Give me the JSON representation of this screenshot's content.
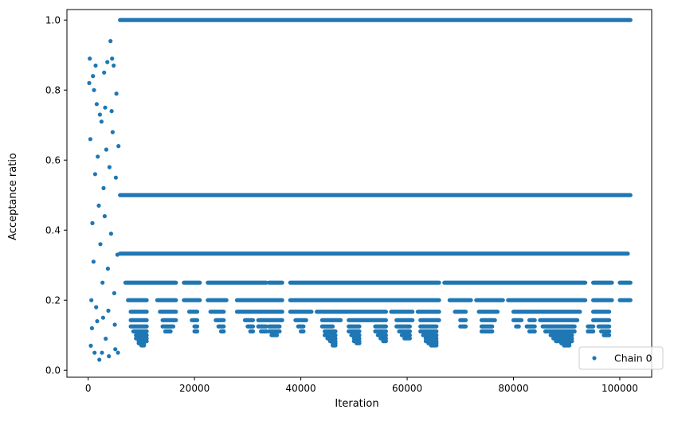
{
  "chart_data": {
    "type": "scatter",
    "xlabel": "Iteration",
    "ylabel": "Acceptance ratio",
    "xlim": [
      -4000,
      106000
    ],
    "ylim": [
      -0.02,
      1.03
    ],
    "xticks": [
      0,
      20000,
      40000,
      60000,
      80000,
      100000
    ],
    "xtick_labels": [
      "0",
      "20000",
      "40000",
      "60000",
      "80000",
      "100000"
    ],
    "yticks": [
      0.0,
      0.2,
      0.4,
      0.6,
      0.8,
      1.0
    ],
    "ytick_labels": [
      "0.0",
      "0.2",
      "0.4",
      "0.6",
      "0.8",
      "1.0"
    ],
    "grid": false,
    "legend_position": "lower-right",
    "marker_color": "#1f77b4",
    "series": [
      {
        "name": "Chain 0",
        "points": [
          [
            200,
            0.82
          ],
          [
            300,
            0.89
          ],
          [
            500,
            0.07
          ],
          [
            700,
            0.12
          ],
          [
            900,
            0.84
          ],
          [
            1200,
            0.05
          ],
          [
            1400,
            0.87
          ],
          [
            1600,
            0.76
          ],
          [
            2100,
            0.03
          ],
          [
            2600,
            0.05
          ],
          [
            3000,
            0.85
          ],
          [
            3300,
            0.09
          ],
          [
            3600,
            0.88
          ],
          [
            3900,
            0.04
          ],
          [
            4200,
            0.94
          ],
          [
            4500,
            0.89
          ],
          [
            4800,
            0.87
          ],
          [
            5100,
            0.06
          ],
          [
            5300,
            0.79
          ],
          [
            5600,
            0.05
          ],
          [
            400,
            0.66
          ],
          [
            800,
            0.42
          ],
          [
            1000,
            0.31
          ],
          [
            1300,
            0.56
          ],
          [
            1500,
            0.18
          ],
          [
            1800,
            0.61
          ],
          [
            2000,
            0.47
          ],
          [
            2300,
            0.36
          ],
          [
            2500,
            0.71
          ],
          [
            2700,
            0.25
          ],
          [
            2900,
            0.52
          ],
          [
            3100,
            0.44
          ],
          [
            3400,
            0.63
          ],
          [
            3700,
            0.29
          ],
          [
            4000,
            0.58
          ],
          [
            4300,
            0.39
          ],
          [
            4600,
            0.68
          ],
          [
            4900,
            0.22
          ],
          [
            5200,
            0.55
          ],
          [
            5500,
            0.33
          ],
          [
            600,
            0.2
          ],
          [
            1100,
            0.8
          ],
          [
            1700,
            0.14
          ],
          [
            2200,
            0.73
          ],
          [
            2800,
            0.15
          ],
          [
            3200,
            0.75
          ],
          [
            3800,
            0.17
          ],
          [
            4400,
            0.74
          ],
          [
            5000,
            0.13
          ],
          [
            5700,
            0.64
          ]
        ],
        "bands": [
          {
            "y": 1.0,
            "segments": [
              [
                6000,
                102000
              ]
            ]
          },
          {
            "y": 0.5,
            "segments": [
              [
                6000,
                102000
              ]
            ]
          },
          {
            "y": 0.333,
            "segments": [
              [
                6000,
                101500
              ]
            ]
          },
          {
            "y": 0.25,
            "segments": [
              [
                7000,
                16500
              ],
              [
                18000,
                21000
              ],
              [
                22500,
                33500
              ],
              [
                34000,
                36500
              ],
              [
                38000,
                66000
              ],
              [
                67000,
                93500
              ],
              [
                95000,
                98500
              ],
              [
                100000,
                102000
              ]
            ]
          },
          {
            "y": 0.2,
            "segments": [
              [
                7500,
                11000
              ],
              [
                13000,
                16500
              ],
              [
                18000,
                21000
              ],
              [
                22500,
                26000
              ],
              [
                28000,
                36500
              ],
              [
                38000,
                66000
              ],
              [
                68000,
                72000
              ],
              [
                73000,
                78000
              ],
              [
                79000,
                93500
              ],
              [
                95000,
                98500
              ],
              [
                100000,
                102000
              ]
            ]
          },
          {
            "y": 0.167,
            "segments": [
              [
                8000,
                11000
              ],
              [
                13500,
                16500
              ],
              [
                19000,
                20500
              ],
              [
                23000,
                25500
              ],
              [
                28000,
                36500
              ],
              [
                38000,
                42000
              ],
              [
                43000,
                56000
              ],
              [
                57000,
                61000
              ],
              [
                62000,
                66000
              ],
              [
                69000,
                71000
              ],
              [
                73500,
                77000
              ],
              [
                80000,
                92500
              ],
              [
                95000,
                98000
              ]
            ]
          },
          {
            "y": 0.143,
            "segments": [
              [
                8000,
                11000
              ],
              [
                14000,
                16500
              ],
              [
                19500,
                20500
              ],
              [
                24000,
                25500
              ],
              [
                29500,
                31000
              ],
              [
                32000,
                36500
              ],
              [
                39000,
                41000
              ],
              [
                44000,
                47500
              ],
              [
                49000,
                56000
              ],
              [
                58000,
                61000
              ],
              [
                62500,
                66000
              ],
              [
                70000,
                71000
              ],
              [
                74000,
                76500
              ],
              [
                80000,
                81500
              ],
              [
                83000,
                84000
              ],
              [
                85000,
                92000
              ],
              [
                95000,
                98000
              ]
            ]
          },
          {
            "y": 0.125,
            "segments": [
              [
                8000,
                11000
              ],
              [
                14000,
                16000
              ],
              [
                20000,
                20500
              ],
              [
                24500,
                25500
              ],
              [
                30000,
                31000
              ],
              [
                32000,
                33500
              ],
              [
                34000,
                36000
              ],
              [
                39500,
                40500
              ],
              [
                44000,
                46000
              ],
              [
                49000,
                51000
              ],
              [
                54000,
                56000
              ],
              [
                58000,
                60500
              ],
              [
                62500,
                65500
              ],
              [
                70000,
                71000
              ],
              [
                74000,
                76000
              ],
              [
                80500,
                81000
              ],
              [
                82500,
                84000
              ],
              [
                85500,
                91500
              ],
              [
                94000,
                95000
              ],
              [
                96000,
                98000
              ]
            ]
          },
          {
            "y": 0.111,
            "segments": [
              [
                8500,
                11000
              ],
              [
                14500,
                15500
              ],
              [
                20000,
                20500
              ],
              [
                25000,
                25500
              ],
              [
                30500,
                31000
              ],
              [
                32500,
                33500
              ],
              [
                34000,
                36000
              ],
              [
                40000,
                40500
              ],
              [
                44500,
                46500
              ],
              [
                49000,
                51000
              ],
              [
                54000,
                56000
              ],
              [
                58500,
                60500
              ],
              [
                62500,
                65500
              ],
              [
                74000,
                76000
              ],
              [
                83000,
                84000
              ],
              [
                86000,
                91500
              ],
              [
                94000,
                95000
              ],
              [
                96500,
                98000
              ]
            ]
          },
          {
            "y": 0.1,
            "segments": [
              [
                9000,
                11000
              ],
              [
                34500,
                35500
              ],
              [
                44500,
                46500
              ],
              [
                49500,
                51000
              ],
              [
                54500,
                56000
              ],
              [
                59000,
                60500
              ],
              [
                63000,
                65500
              ],
              [
                87000,
                91000
              ],
              [
                97000,
                98000
              ]
            ]
          },
          {
            "y": 0.091,
            "segments": [
              [
                9000,
                11000
              ],
              [
                45000,
                46500
              ],
              [
                50000,
                51000
              ],
              [
                55000,
                56000
              ],
              [
                59500,
                60500
              ],
              [
                63500,
                65500
              ],
              [
                87500,
                91000
              ]
            ]
          },
          {
            "y": 0.083,
            "segments": [
              [
                9500,
                11000
              ],
              [
                45500,
                46500
              ],
              [
                50000,
                51000
              ],
              [
                55500,
                56000
              ],
              [
                63500,
                65500
              ],
              [
                88000,
                91000
              ]
            ]
          },
          {
            "y": 0.077,
            "segments": [
              [
                9500,
                10500
              ],
              [
                46000,
                46500
              ],
              [
                50500,
                51000
              ],
              [
                64000,
                65500
              ],
              [
                89000,
                90500
              ]
            ]
          },
          {
            "y": 0.071,
            "segments": [
              [
                10000,
                10500
              ],
              [
                46000,
                46500
              ],
              [
                64500,
                65500
              ],
              [
                89500,
                90500
              ]
            ]
          }
        ]
      }
    ]
  }
}
